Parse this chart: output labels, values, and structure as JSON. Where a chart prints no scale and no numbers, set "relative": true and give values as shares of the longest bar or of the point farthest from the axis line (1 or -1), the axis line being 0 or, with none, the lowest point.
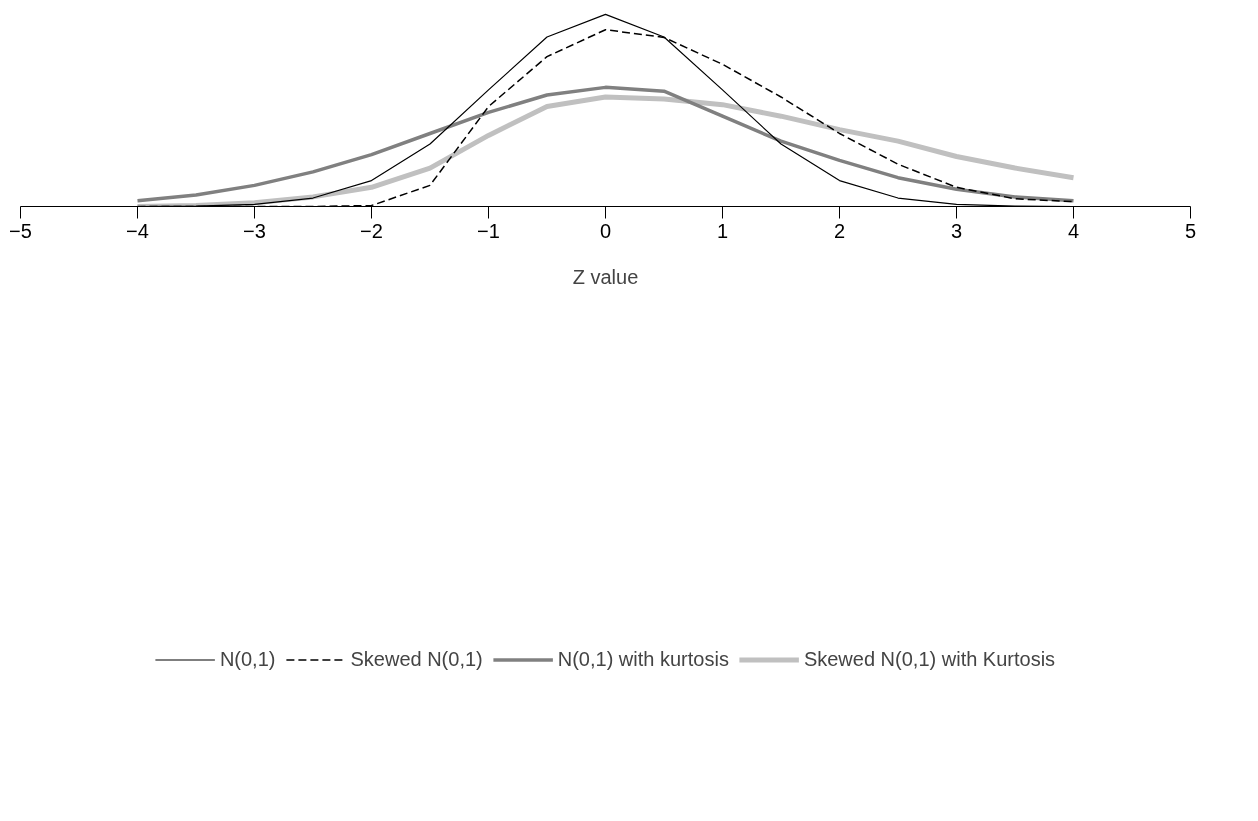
{
  "chart_data": {
    "type": "line",
    "xlabel": "Z value",
    "relative": true,
    "xlim": [
      -5,
      5
    ],
    "xticks": [
      -5,
      -4,
      -3,
      -2,
      -1,
      0,
      1,
      2,
      3,
      4,
      5
    ],
    "grid": false,
    "legend": "bottom",
    "marker": "none",
    "x": [
      -4,
      -3.5,
      -3,
      -2.5,
      -2,
      -1.5,
      -1,
      -0.5,
      0,
      0.5,
      1,
      1.5,
      2,
      2.5,
      3,
      3.5,
      4
    ],
    "series": [
      {
        "name": "N(0,1)",
        "color": "#000000",
        "line_style": "solid",
        "values": [
          0,
          0.002,
          0.011,
          0.044,
          0.135,
          0.325,
          0.607,
          0.882,
          1,
          0.882,
          0.607,
          0.325,
          0.135,
          0.044,
          0.011,
          0.002,
          0
        ]
      },
      {
        "name": "Skewed N(0,1)",
        "color": "#000000",
        "line_style": "dashed",
        "values": [
          0,
          0,
          0,
          0,
          0.005,
          0.11,
          0.52,
          0.78,
          0.92,
          0.88,
          0.74,
          0.57,
          0.38,
          0.22,
          0.1,
          0.04,
          0.025
        ]
      },
      {
        "name": "N(0,1) with kurtosis",
        "color": "#808080",
        "line_style": "solid",
        "values": [
          0.03,
          0.06,
          0.11,
          0.18,
          0.27,
          0.38,
          0.49,
          0.58,
          0.62,
          0.6,
          0.47,
          0.34,
          0.24,
          0.15,
          0.09,
          0.05,
          0.03
        ]
      },
      {
        "name": "Skewed N(0,1) with Kurtosis",
        "color": "#c0c0c0",
        "line_style": "solid",
        "values": [
          0,
          0.005,
          0.02,
          0.05,
          0.1,
          0.2,
          0.37,
          0.52,
          0.57,
          0.56,
          0.53,
          0.47,
          0.4,
          0.34,
          0.26,
          0.2,
          0.15
        ]
      }
    ]
  }
}
